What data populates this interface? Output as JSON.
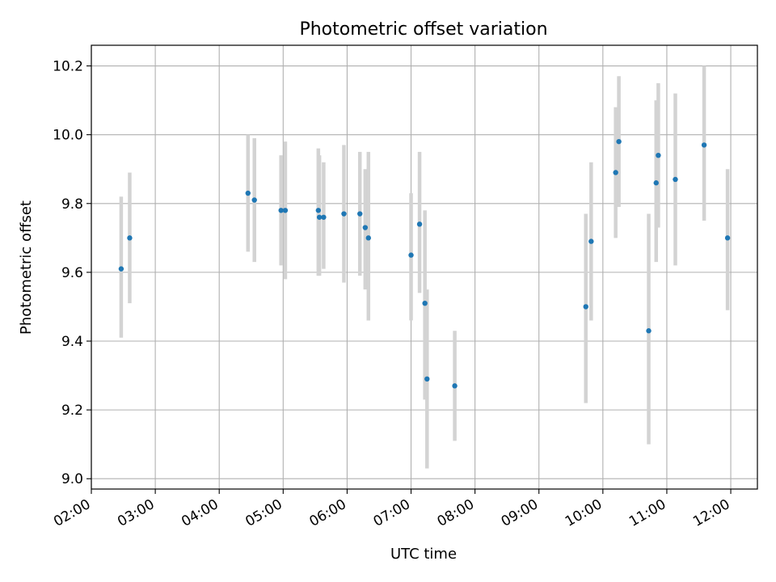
{
  "chart_data": {
    "type": "scatter",
    "title": "Photometric offset variation",
    "xlabel": "UTC time",
    "ylabel": "Photometric offset",
    "x_unit": "UTC hh:mm",
    "xlim": [
      "02:00",
      "12:25"
    ],
    "ylim": [
      8.97,
      10.26
    ],
    "xticks": [
      "02:00",
      "03:00",
      "04:00",
      "05:00",
      "06:00",
      "07:00",
      "08:00",
      "09:00",
      "10:00",
      "11:00",
      "12:00"
    ],
    "yticks": [
      9.0,
      9.2,
      9.4,
      9.6,
      9.8,
      10.0,
      10.2
    ],
    "grid": true,
    "colors": {
      "point": "#1f77b4",
      "errorbar": "#d3d3d3",
      "grid": "#b0b0b0"
    },
    "points": [
      {
        "x": "02:28",
        "y": 9.61,
        "ylow": 9.41,
        "yhigh": 9.82
      },
      {
        "x": "02:36",
        "y": 9.7,
        "ylow": 9.51,
        "yhigh": 9.89
      },
      {
        "x": "04:27",
        "y": 9.83,
        "ylow": 9.66,
        "yhigh": 10.0
      },
      {
        "x": "04:33",
        "y": 9.81,
        "ylow": 9.63,
        "yhigh": 9.99
      },
      {
        "x": "04:58",
        "y": 9.78,
        "ylow": 9.62,
        "yhigh": 9.94
      },
      {
        "x": "05:02",
        "y": 9.78,
        "ylow": 9.58,
        "yhigh": 9.98
      },
      {
        "x": "05:33",
        "y": 9.78,
        "ylow": 9.59,
        "yhigh": 9.96
      },
      {
        "x": "05:34",
        "y": 9.76,
        "ylow": 9.59,
        "yhigh": 9.94
      },
      {
        "x": "05:38",
        "y": 9.76,
        "ylow": 9.61,
        "yhigh": 9.92
      },
      {
        "x": "05:57",
        "y": 9.77,
        "ylow": 9.57,
        "yhigh": 9.97
      },
      {
        "x": "06:12",
        "y": 9.77,
        "ylow": 9.59,
        "yhigh": 9.95
      },
      {
        "x": "06:17",
        "y": 9.73,
        "ylow": 9.55,
        "yhigh": 9.9
      },
      {
        "x": "06:20",
        "y": 9.7,
        "ylow": 9.46,
        "yhigh": 9.95
      },
      {
        "x": "07:00",
        "y": 9.65,
        "ylow": 9.46,
        "yhigh": 9.83
      },
      {
        "x": "07:08",
        "y": 9.74,
        "ylow": 9.54,
        "yhigh": 9.95
      },
      {
        "x": "07:13",
        "y": 9.51,
        "ylow": 9.23,
        "yhigh": 9.78
      },
      {
        "x": "07:15",
        "y": 9.29,
        "ylow": 9.03,
        "yhigh": 9.55
      },
      {
        "x": "07:41",
        "y": 9.27,
        "ylow": 9.11,
        "yhigh": 9.43
      },
      {
        "x": "09:44",
        "y": 9.5,
        "ylow": 9.22,
        "yhigh": 9.77
      },
      {
        "x": "09:49",
        "y": 9.69,
        "ylow": 9.46,
        "yhigh": 9.92
      },
      {
        "x": "10:12",
        "y": 9.89,
        "ylow": 9.7,
        "yhigh": 10.08
      },
      {
        "x": "10:15",
        "y": 9.98,
        "ylow": 9.79,
        "yhigh": 10.17
      },
      {
        "x": "10:43",
        "y": 9.43,
        "ylow": 9.1,
        "yhigh": 9.77
      },
      {
        "x": "10:50",
        "y": 9.86,
        "ylow": 9.63,
        "yhigh": 10.1
      },
      {
        "x": "10:52",
        "y": 9.94,
        "ylow": 9.73,
        "yhigh": 10.15
      },
      {
        "x": "11:08",
        "y": 9.87,
        "ylow": 9.62,
        "yhigh": 10.12
      },
      {
        "x": "11:35",
        "y": 9.97,
        "ylow": 9.75,
        "yhigh": 10.2
      },
      {
        "x": "11:57",
        "y": 9.7,
        "ylow": 9.49,
        "yhigh": 9.9
      }
    ]
  }
}
